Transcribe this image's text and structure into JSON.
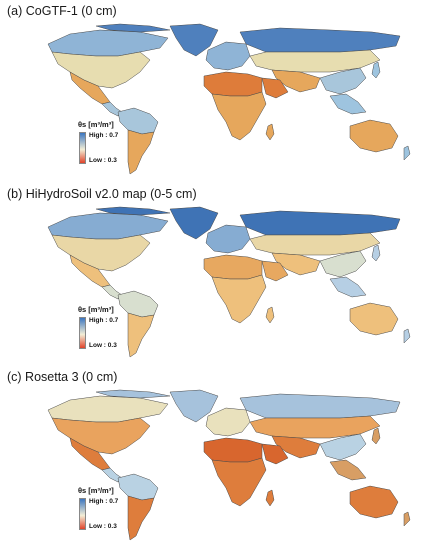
{
  "panels": [
    {
      "title": "(a)  CoGTF-1 (0 cm)",
      "legend": {
        "header": "θs [m³/m³]",
        "high": "High : 0.7",
        "low": "Low : 0.3"
      },
      "palette": {
        "north": "#4f80bd",
        "boreal": "#8fb4d6",
        "temperate": "#e7ddb0",
        "dry": "#e6a75c",
        "desert": "#de7c3a",
        "tropic": "#a8c6db",
        "wet": "#9ec4df"
      }
    },
    {
      "title": "(b)  HiHydroSoil v2.0 map (0-5 cm)",
      "legend": {
        "header": "θs [m³/m³]",
        "high": "High : 0.7",
        "low": "Low : 0.3"
      },
      "palette": {
        "north": "#3f73b5",
        "boreal": "#86acd2",
        "temperate": "#e9d7a6",
        "dry": "#eec07c",
        "desert": "#e7a860",
        "tropic": "#d8dfcf",
        "wet": "#b6cfe4"
      }
    },
    {
      "title": "(c)  Rosetta 3 (0 cm)",
      "legend": {
        "header": "θs [m³/m³]",
        "high": "High : 0.7",
        "low": "Low : 0.3"
      },
      "palette": {
        "north": "#a6c2dc",
        "boreal": "#e9e1bd",
        "temperate": "#e9a35e",
        "dry": "#de7d3c",
        "desert": "#d8662e",
        "tropic": "#b9d2e3",
        "wet": "#d89e64"
      }
    }
  ],
  "colors": {
    "legend_high": "#3b76c0",
    "legend_mid": "#f3eed6",
    "legend_low": "#e0432a",
    "border": "#4a4a4a"
  }
}
